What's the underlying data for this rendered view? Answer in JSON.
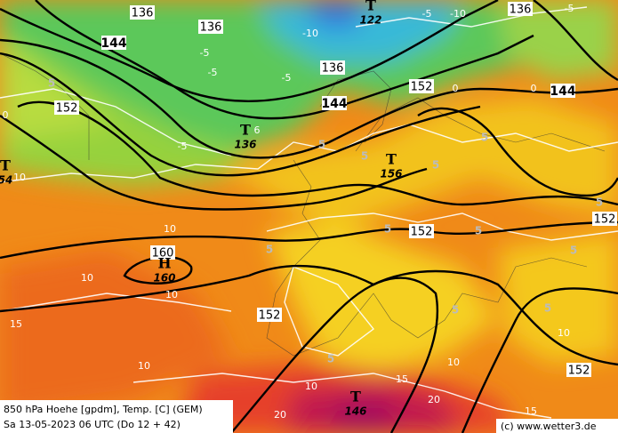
{
  "footer": {
    "line1": "850 hPa Hoehe [gpdm], Temp. [C] (GEM)",
    "line2": "Sa 13-05-2023 06 UTC (Do 12 + 42)"
  },
  "credit": "(c) www.wetter3.de",
  "height_labels": [
    "136",
    "136",
    "144",
    "136",
    "144",
    "152",
    "144",
    "152",
    "136",
    "152",
    "152",
    "152",
    "152",
    "160"
  ],
  "pressure_centers": [
    {
      "kind": "T",
      "value": "122"
    },
    {
      "kind": "T",
      "value": "136"
    },
    {
      "kind": "T",
      "value": "156"
    },
    {
      "kind": "T",
      "value": "54"
    },
    {
      "kind": "H",
      "value": "160"
    },
    {
      "kind": "T",
      "value": "146"
    }
  ],
  "temperature_labels": [
    "-10",
    "-5",
    "-5",
    "-10",
    "-5",
    "-5",
    "-5",
    "0",
    "0",
    "-5",
    "6",
    "5",
    "5",
    "5",
    "5",
    "5",
    "10",
    "10",
    "5",
    "5",
    "5",
    "5",
    "5",
    "10",
    "10",
    "15",
    "10",
    "5",
    "10",
    "15",
    "20",
    "5",
    "10",
    "10",
    "15",
    "20",
    "5",
    "0"
  ]
}
